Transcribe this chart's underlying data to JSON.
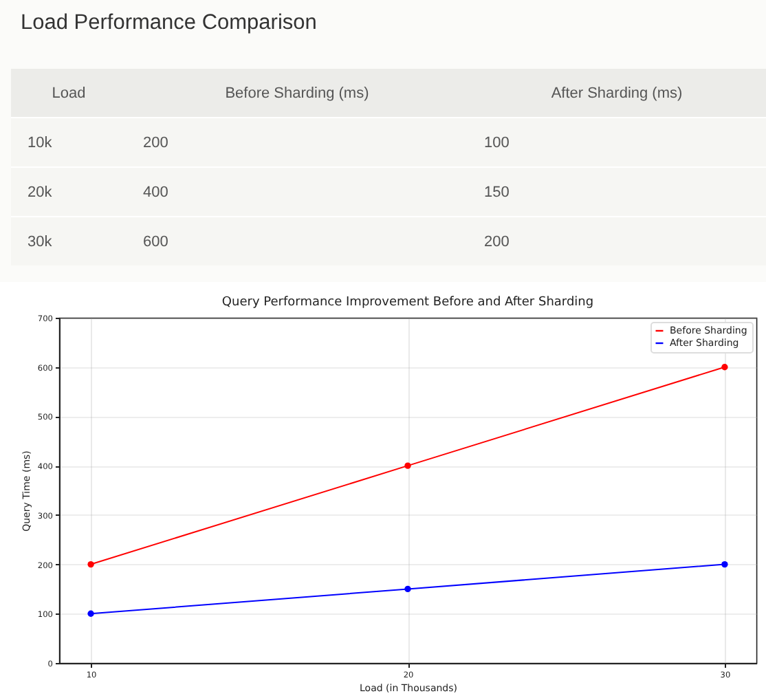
{
  "chart_data": [
    {
      "type": "other",
      "title": "Load Performance Comparison",
      "annotations": [
        "Load",
        "Before Sharding (ms)",
        "After Sharding (ms)",
        "10k",
        "200",
        "100",
        "20k",
        "400",
        "150",
        "30k",
        "600",
        "200"
      ]
    },
    {
      "type": "line",
      "title": "Query Performance Improvement Before and After Sharding",
      "xlabel": "Load (in Thousands)",
      "ylabel": "Query Time (ms)",
      "x": [
        10,
        20,
        30
      ],
      "series": [
        {
          "name": "Before Sharding",
          "color": "#ff0000",
          "values": [
            200,
            400,
            600
          ]
        },
        {
          "name": "After Sharding",
          "color": "#0000ff",
          "values": [
            100,
            150,
            200
          ]
        }
      ],
      "xlim": [
        9,
        31
      ],
      "ylim": [
        0,
        700
      ],
      "xticks": [
        10,
        20,
        30
      ],
      "yticks": [
        0,
        100,
        200,
        300,
        400,
        500,
        600,
        700
      ],
      "grid": true,
      "legend": "top right",
      "marker": "circle",
      "line_style": "solid"
    }
  ]
}
